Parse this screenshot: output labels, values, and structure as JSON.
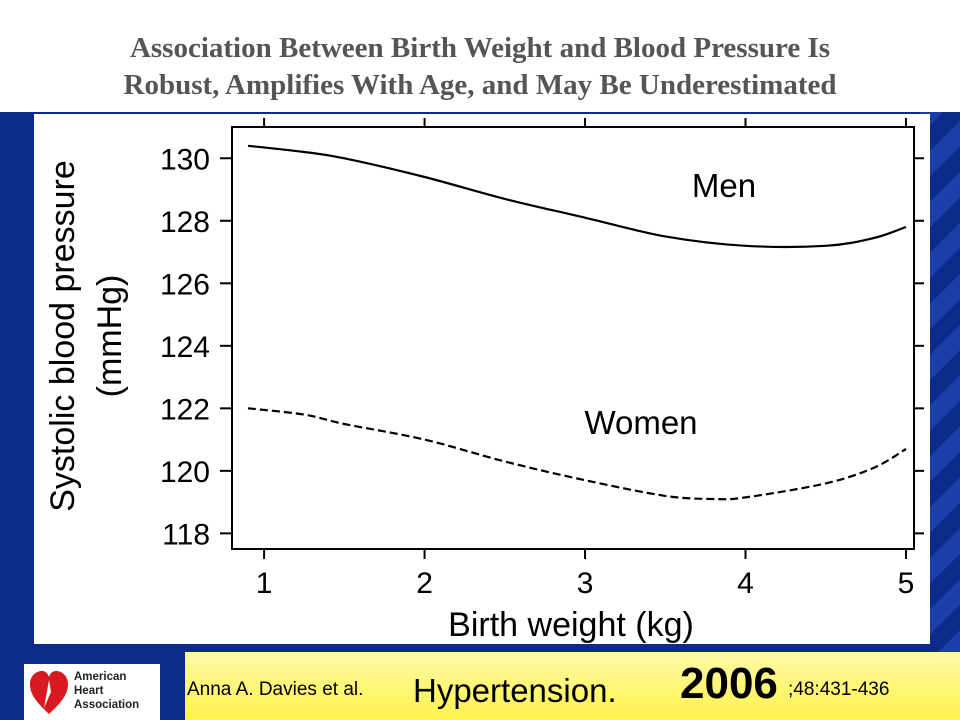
{
  "slide": {
    "title_line1": "Association Between Birth Weight and Blood Pressure Is",
    "title_line2": "Robust, Amplifies With Age, and May Be Underestimated"
  },
  "citation": {
    "authors": "Anna A. Davies et al.",
    "journal": "Hypertension.",
    "year": "2006",
    "volume_pages": ";48:431-436"
  },
  "logo": {
    "line1": "American",
    "line2": "Heart",
    "line3": "Association"
  },
  "colors": {
    "background": "#0b2a8a",
    "citation_bar": "#fff34a",
    "logo_heart": "#d71920"
  },
  "chart_data": {
    "type": "line",
    "xlabel": "Birth weight (kg)",
    "ylabel_line1": "Systolic blood pressure",
    "ylabel_line2": "(mmHg)",
    "xlim": [
      0.8,
      5.05
    ],
    "ylim": [
      117.5,
      131
    ],
    "xticks": [
      1,
      2,
      3,
      4,
      5
    ],
    "yticks": [
      118,
      120,
      122,
      124,
      126,
      128,
      130
    ],
    "grid": false,
    "legend": "none",
    "series": [
      {
        "name": "Men",
        "style": "solid",
        "x": [
          0.9,
          1.25,
          1.5,
          2.0,
          2.5,
          3.0,
          3.5,
          4.0,
          4.5,
          4.8,
          5.0
        ],
        "y": [
          130.4,
          130.2,
          130.0,
          129.4,
          128.7,
          128.1,
          127.5,
          127.2,
          127.2,
          127.45,
          127.8
        ]
      },
      {
        "name": "Women",
        "style": "dashed",
        "x": [
          0.9,
          1.25,
          1.5,
          2.0,
          2.5,
          3.0,
          3.5,
          3.8,
          4.0,
          4.5,
          4.8,
          5.0
        ],
        "y": [
          122.0,
          121.8,
          121.5,
          121.0,
          120.3,
          119.7,
          119.2,
          119.1,
          119.15,
          119.6,
          120.1,
          120.7
        ]
      }
    ]
  }
}
